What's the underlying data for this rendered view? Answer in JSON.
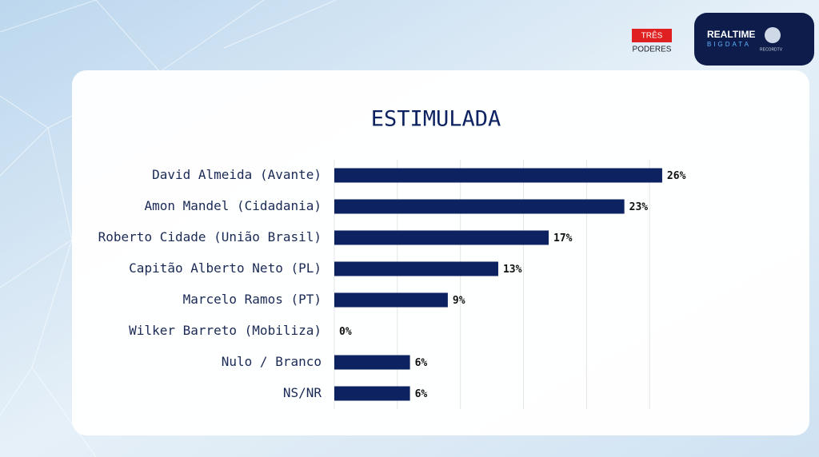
{
  "chart_data": {
    "type": "barh",
    "title": "ESTIMULADA",
    "categories": [
      "David Almeida (Avante)",
      "Amon Mandel (Cidadania)",
      "Roberto Cidade (União Brasil)",
      "Capitão Alberto Neto (PL)",
      "Marcelo Ramos (PT)",
      "Wilker Barreto (Mobiliza)",
      "Nulo / Branco",
      "NS/NR"
    ],
    "values": [
      26,
      23,
      17,
      13,
      9,
      0,
      6,
      6
    ],
    "value_labels": [
      "26%",
      "23%",
      "17%",
      "13%",
      "9%",
      "0%",
      "6%",
      "6%"
    ],
    "color": "#0d2260",
    "xlim": [
      0,
      30
    ],
    "xticks": [
      0,
      5,
      10,
      15,
      20,
      25
    ],
    "grid": true
  },
  "logos": {
    "tres": "TRÊS",
    "poderes": "PODERES",
    "realtime": "REALTIME",
    "bigdata": "BIGDATA",
    "record": "RECORDTV"
  }
}
